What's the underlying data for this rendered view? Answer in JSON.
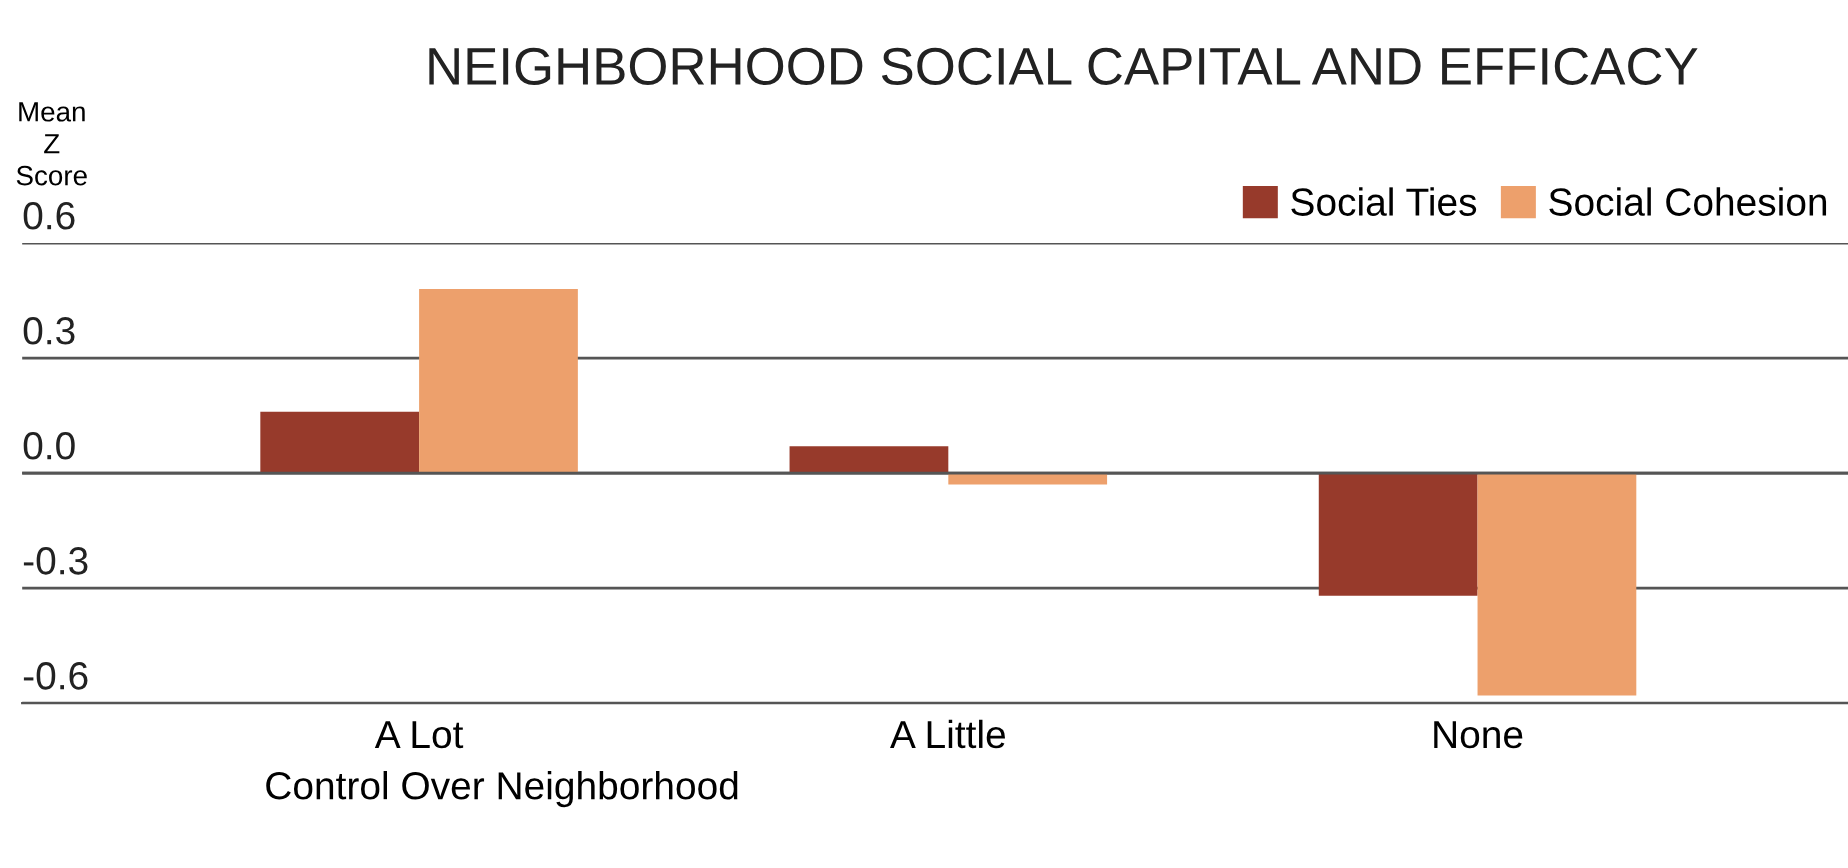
{
  "chart_data": {
    "type": "bar",
    "title": "NEIGHBORHOOD SOCIAL CAPITAL AND EFFICACY",
    "ylabel": "Mean\nZ\nScore",
    "xlabel": "Control Over Neighborhood",
    "categories": [
      "A Lot",
      "A Little",
      "None"
    ],
    "series": [
      {
        "name": "Social Ties",
        "color": "#973a2b",
        "values": [
          0.16,
          0.07,
          -0.32
        ]
      },
      {
        "name": "Social Cohesion",
        "color": "#eda06c",
        "values": [
          0.48,
          -0.03,
          -0.58
        ]
      }
    ],
    "ylim": [
      -0.6,
      0.6
    ],
    "yticks": [
      {
        "value": 0.6,
        "label": "0.6"
      },
      {
        "value": 0.3,
        "label": "0.3"
      },
      {
        "value": 0,
        "label": "0.0"
      },
      {
        "value": -0.3,
        "label": "-0.3"
      },
      {
        "value": -0.6,
        "label": "-0.6"
      }
    ],
    "grid": "y",
    "legend": "top right"
  }
}
